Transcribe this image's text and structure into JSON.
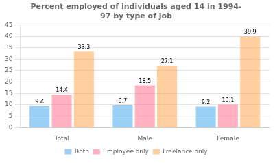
{
  "chart_data": {
    "type": "bar",
    "title": "Percent employed of individuals aged 14 in 1994-\n97 by type of job",
    "categories": [
      "Total",
      "Male",
      "Female"
    ],
    "series": [
      {
        "name": "Both",
        "values": [
          9.4,
          9.7,
          9.2
        ]
      },
      {
        "name": "Employee only",
        "values": [
          14.4,
          18.5,
          10.1
        ]
      },
      {
        "name": "Freelance only",
        "values": [
          33.3,
          27.1,
          39.9
        ]
      }
    ],
    "ylim": [
      0,
      45
    ],
    "yticks": [
      0,
      5,
      10,
      15,
      20,
      25,
      30,
      35,
      40,
      45
    ],
    "grid": true,
    "legend": "bottom",
    "data_labels": true
  }
}
